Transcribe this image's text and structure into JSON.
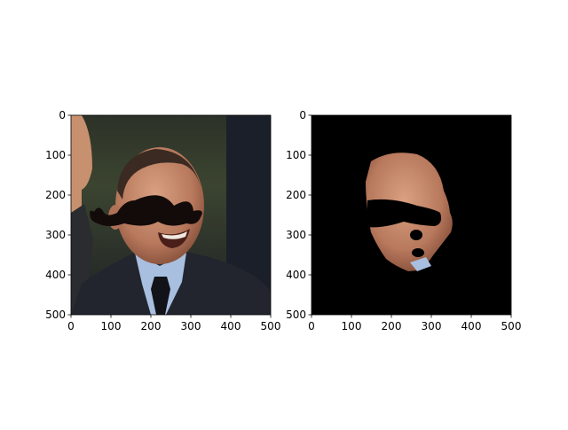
{
  "chart_data": [
    {
      "type": "image",
      "title": "",
      "xlabel": "",
      "ylabel": "",
      "xlim": [
        0,
        500
      ],
      "ylim": [
        500,
        0
      ],
      "xticks": [
        0,
        100,
        200,
        300,
        400,
        500
      ],
      "yticks": [
        0,
        100,
        200,
        300,
        400,
        500
      ],
      "content": "photo of a smiling man in a dark suit with a black mustache overlay"
    },
    {
      "type": "image",
      "title": "",
      "xlabel": "",
      "ylabel": "",
      "xlim": [
        0,
        500
      ],
      "ylim": [
        500,
        0
      ],
      "xticks": [
        0,
        100,
        200,
        300,
        400,
        500
      ],
      "yticks": [
        0,
        100,
        200,
        300,
        400,
        500
      ],
      "content": "face region segmented on black background, eye band and mouth holes masked out"
    }
  ],
  "colors": {
    "background": "#ffffff",
    "mask": "#000000",
    "skin": "#c48a6e",
    "suit": "#22252e",
    "mustache": "#130b0a"
  }
}
